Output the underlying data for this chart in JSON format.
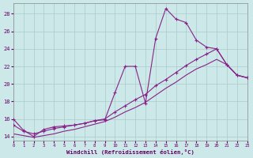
{
  "xlabel": "Windchill (Refroidissement éolien,°C)",
  "background_color": "#cce8e8",
  "grid_color": "#aacccc",
  "line_color": "#882288",
  "tick_color": "#660066",
  "xlim": [
    0,
    23
  ],
  "ylim": [
    13.5,
    29.2
  ],
  "xticks": [
    0,
    1,
    2,
    3,
    4,
    5,
    6,
    7,
    8,
    9,
    10,
    11,
    12,
    13,
    14,
    15,
    16,
    17,
    18,
    19,
    20,
    21,
    22,
    23
  ],
  "yticks": [
    14,
    16,
    18,
    20,
    22,
    24,
    26,
    28
  ],
  "x_data": [
    0,
    1,
    2,
    3,
    4,
    5,
    6,
    7,
    8,
    9,
    10,
    11,
    12,
    13,
    14,
    15,
    16,
    17,
    18,
    19,
    20,
    21,
    22,
    23
  ],
  "y_zigzag": [
    16.0,
    14.7,
    14.0,
    14.8,
    15.1,
    15.2,
    15.3,
    15.5,
    15.8,
    15.9,
    19.0,
    22.0,
    22.0,
    17.8,
    25.2,
    28.6,
    27.4,
    27.0,
    25.0,
    24.2,
    24.0,
    22.2,
    21.0,
    20.7
  ],
  "y_smooth1": [
    15.3,
    14.6,
    14.3,
    14.6,
    14.9,
    15.1,
    15.3,
    15.5,
    15.8,
    16.0,
    16.8,
    17.5,
    18.2,
    18.8,
    19.8,
    20.5,
    21.3,
    22.1,
    22.8,
    23.4,
    24.0,
    22.2,
    21.0,
    20.7
  ],
  "y_smooth2": [
    14.3,
    14.1,
    13.9,
    14.1,
    14.3,
    14.6,
    14.8,
    15.1,
    15.4,
    15.7,
    16.2,
    16.8,
    17.3,
    17.9,
    18.7,
    19.5,
    20.2,
    21.0,
    21.7,
    22.2,
    22.8,
    22.2,
    21.0,
    20.7
  ]
}
